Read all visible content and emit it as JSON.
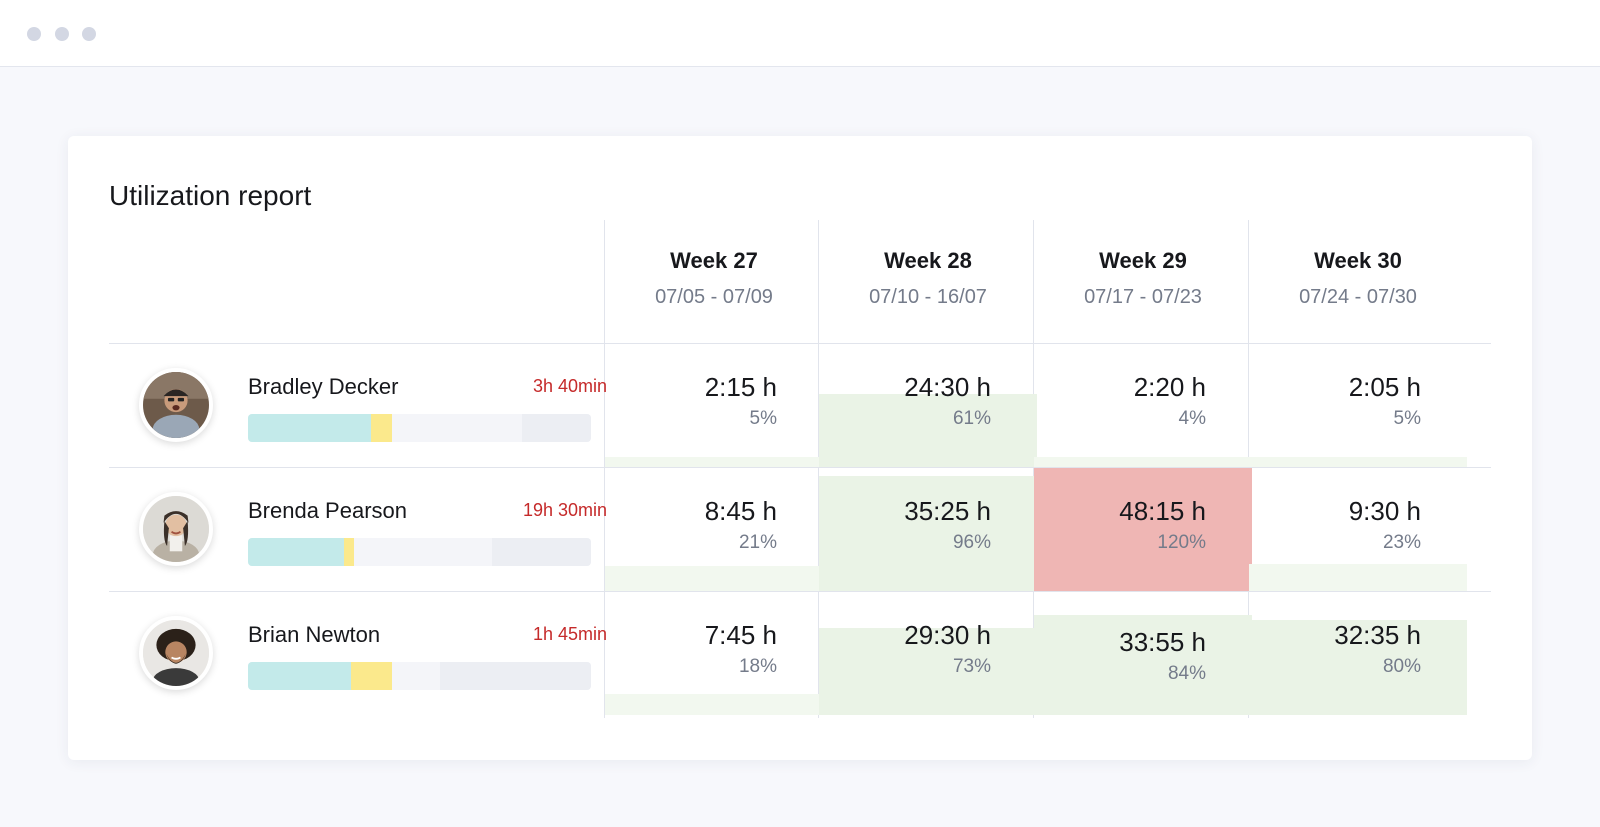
{
  "report": {
    "title": "Utilization report"
  },
  "weeks": [
    {
      "name": "Week 27",
      "range": "07/05 - 07/09"
    },
    {
      "name": "Week 28",
      "range": "07/10 - 16/07"
    },
    {
      "name": "Week 29",
      "range": "07/17 - 07/23"
    },
    {
      "name": "Week 30",
      "range": "07/24 - 07/30"
    }
  ],
  "people": [
    {
      "name": "Bradley Decker",
      "overtime": "3h 40min",
      "bar": {
        "main_pct": 36,
        "extra_pct": 6,
        "tail_pct": 20
      },
      "cells": [
        {
          "hours": "2:15 h",
          "pct": "5%",
          "utilization": 5,
          "status": "normal"
        },
        {
          "hours": "24:30 h",
          "pct": "61%",
          "utilization": 61,
          "status": "normal"
        },
        {
          "hours": "2:20 h",
          "pct": "4%",
          "utilization": 4,
          "status": "normal"
        },
        {
          "hours": "2:05 h",
          "pct": "5%",
          "utilization": 5,
          "status": "normal"
        }
      ]
    },
    {
      "name": "Brenda Pearson",
      "overtime": "19h 30min",
      "bar": {
        "main_pct": 28,
        "extra_pct": 3,
        "tail_pct": 29
      },
      "cells": [
        {
          "hours": "8:45 h",
          "pct": "21%",
          "utilization": 21,
          "status": "normal"
        },
        {
          "hours": "35:25 h",
          "pct": "96%",
          "utilization": 96,
          "status": "normal"
        },
        {
          "hours": "48:15 h",
          "pct": "120%",
          "utilization": 120,
          "status": "over"
        },
        {
          "hours": "9:30 h",
          "pct": "23%",
          "utilization": 23,
          "status": "normal"
        }
      ]
    },
    {
      "name": "Brian Newton",
      "overtime": "1h 45min",
      "bar": {
        "main_pct": 30,
        "extra_pct": 12,
        "tail_pct": 44
      },
      "cells": [
        {
          "hours": "7:45 h",
          "pct": "18%",
          "utilization": 18,
          "status": "normal"
        },
        {
          "hours": "29:30 h",
          "pct": "73%",
          "utilization": 73,
          "status": "normal"
        },
        {
          "hours": "33:55 h",
          "pct": "84%",
          "utilization": 84,
          "status": "normal"
        },
        {
          "hours": "32:35 h",
          "pct": "80%",
          "utilization": 80,
          "status": "normal"
        }
      ]
    }
  ],
  "colors": {
    "overtime_text": "#c52a2a",
    "bar_main": "#c3eaea",
    "bar_extra": "#fbe98c",
    "fill_normal": "#eaf3e6",
    "fill_over": "#efb6b4"
  }
}
